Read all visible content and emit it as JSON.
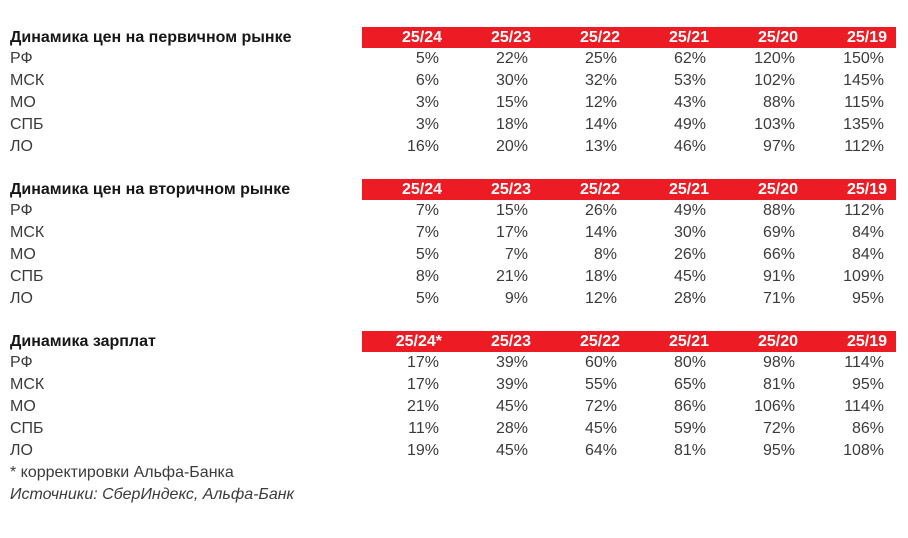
{
  "colors": {
    "header_bg": "#ed1c24",
    "header_text": "#ffffff",
    "title_text": "#161616",
    "body_text": "#3b3b3b",
    "page_bg": "#ffffff"
  },
  "chart_data": [
    {
      "type": "table",
      "title": "Динамика цен на первичном рынке",
      "columns": [
        "25/24",
        "25/23",
        "25/22",
        "25/21",
        "25/20",
        "25/19"
      ],
      "rows": [
        {
          "label": "РФ",
          "values": [
            "5%",
            "22%",
            "25%",
            "62%",
            "120%",
            "150%"
          ]
        },
        {
          "label": "МСК",
          "values": [
            "6%",
            "30%",
            "32%",
            "53%",
            "102%",
            "145%"
          ]
        },
        {
          "label": "МО",
          "values": [
            "3%",
            "15%",
            "12%",
            "43%",
            "88%",
            "115%"
          ]
        },
        {
          "label": "СПБ",
          "values": [
            "3%",
            "18%",
            "14%",
            "49%",
            "103%",
            "135%"
          ]
        },
        {
          "label": "ЛО",
          "values": [
            "16%",
            "20%",
            "13%",
            "46%",
            "97%",
            "112%"
          ]
        }
      ]
    },
    {
      "type": "table",
      "title": "Динамика цен на вторичном рынке",
      "columns": [
        "25/24",
        "25/23",
        "25/22",
        "25/21",
        "25/20",
        "25/19"
      ],
      "rows": [
        {
          "label": "РФ",
          "values": [
            "7%",
            "15%",
            "26%",
            "49%",
            "88%",
            "112%"
          ]
        },
        {
          "label": "МСК",
          "values": [
            "7%",
            "17%",
            "14%",
            "30%",
            "69%",
            "84%"
          ]
        },
        {
          "label": "МО",
          "values": [
            "5%",
            "7%",
            "8%",
            "26%",
            "66%",
            "84%"
          ]
        },
        {
          "label": "СПБ",
          "values": [
            "8%",
            "21%",
            "18%",
            "45%",
            "91%",
            "109%"
          ]
        },
        {
          "label": "ЛО",
          "values": [
            "5%",
            "9%",
            "12%",
            "28%",
            "71%",
            "95%"
          ]
        }
      ]
    },
    {
      "type": "table",
      "title": "Динамика зарплат",
      "columns": [
        "25/24*",
        "25/23",
        "25/22",
        "25/21",
        "25/20",
        "25/19"
      ],
      "rows": [
        {
          "label": "РФ",
          "values": [
            "17%",
            "39%",
            "60%",
            "80%",
            "98%",
            "114%"
          ]
        },
        {
          "label": "МСК",
          "values": [
            "17%",
            "39%",
            "55%",
            "65%",
            "81%",
            "95%"
          ]
        },
        {
          "label": "МО",
          "values": [
            "21%",
            "45%",
            "72%",
            "86%",
            "106%",
            "114%"
          ]
        },
        {
          "label": "СПБ",
          "values": [
            "11%",
            "28%",
            "45%",
            "59%",
            "72%",
            "86%"
          ]
        },
        {
          "label": "ЛО",
          "values": [
            "19%",
            "45%",
            "64%",
            "81%",
            "95%",
            "108%"
          ]
        }
      ]
    }
  ],
  "footnote": "* корректировки Альфа-Банка",
  "source": "Источники: СберИндекс, Альфа-Банк"
}
